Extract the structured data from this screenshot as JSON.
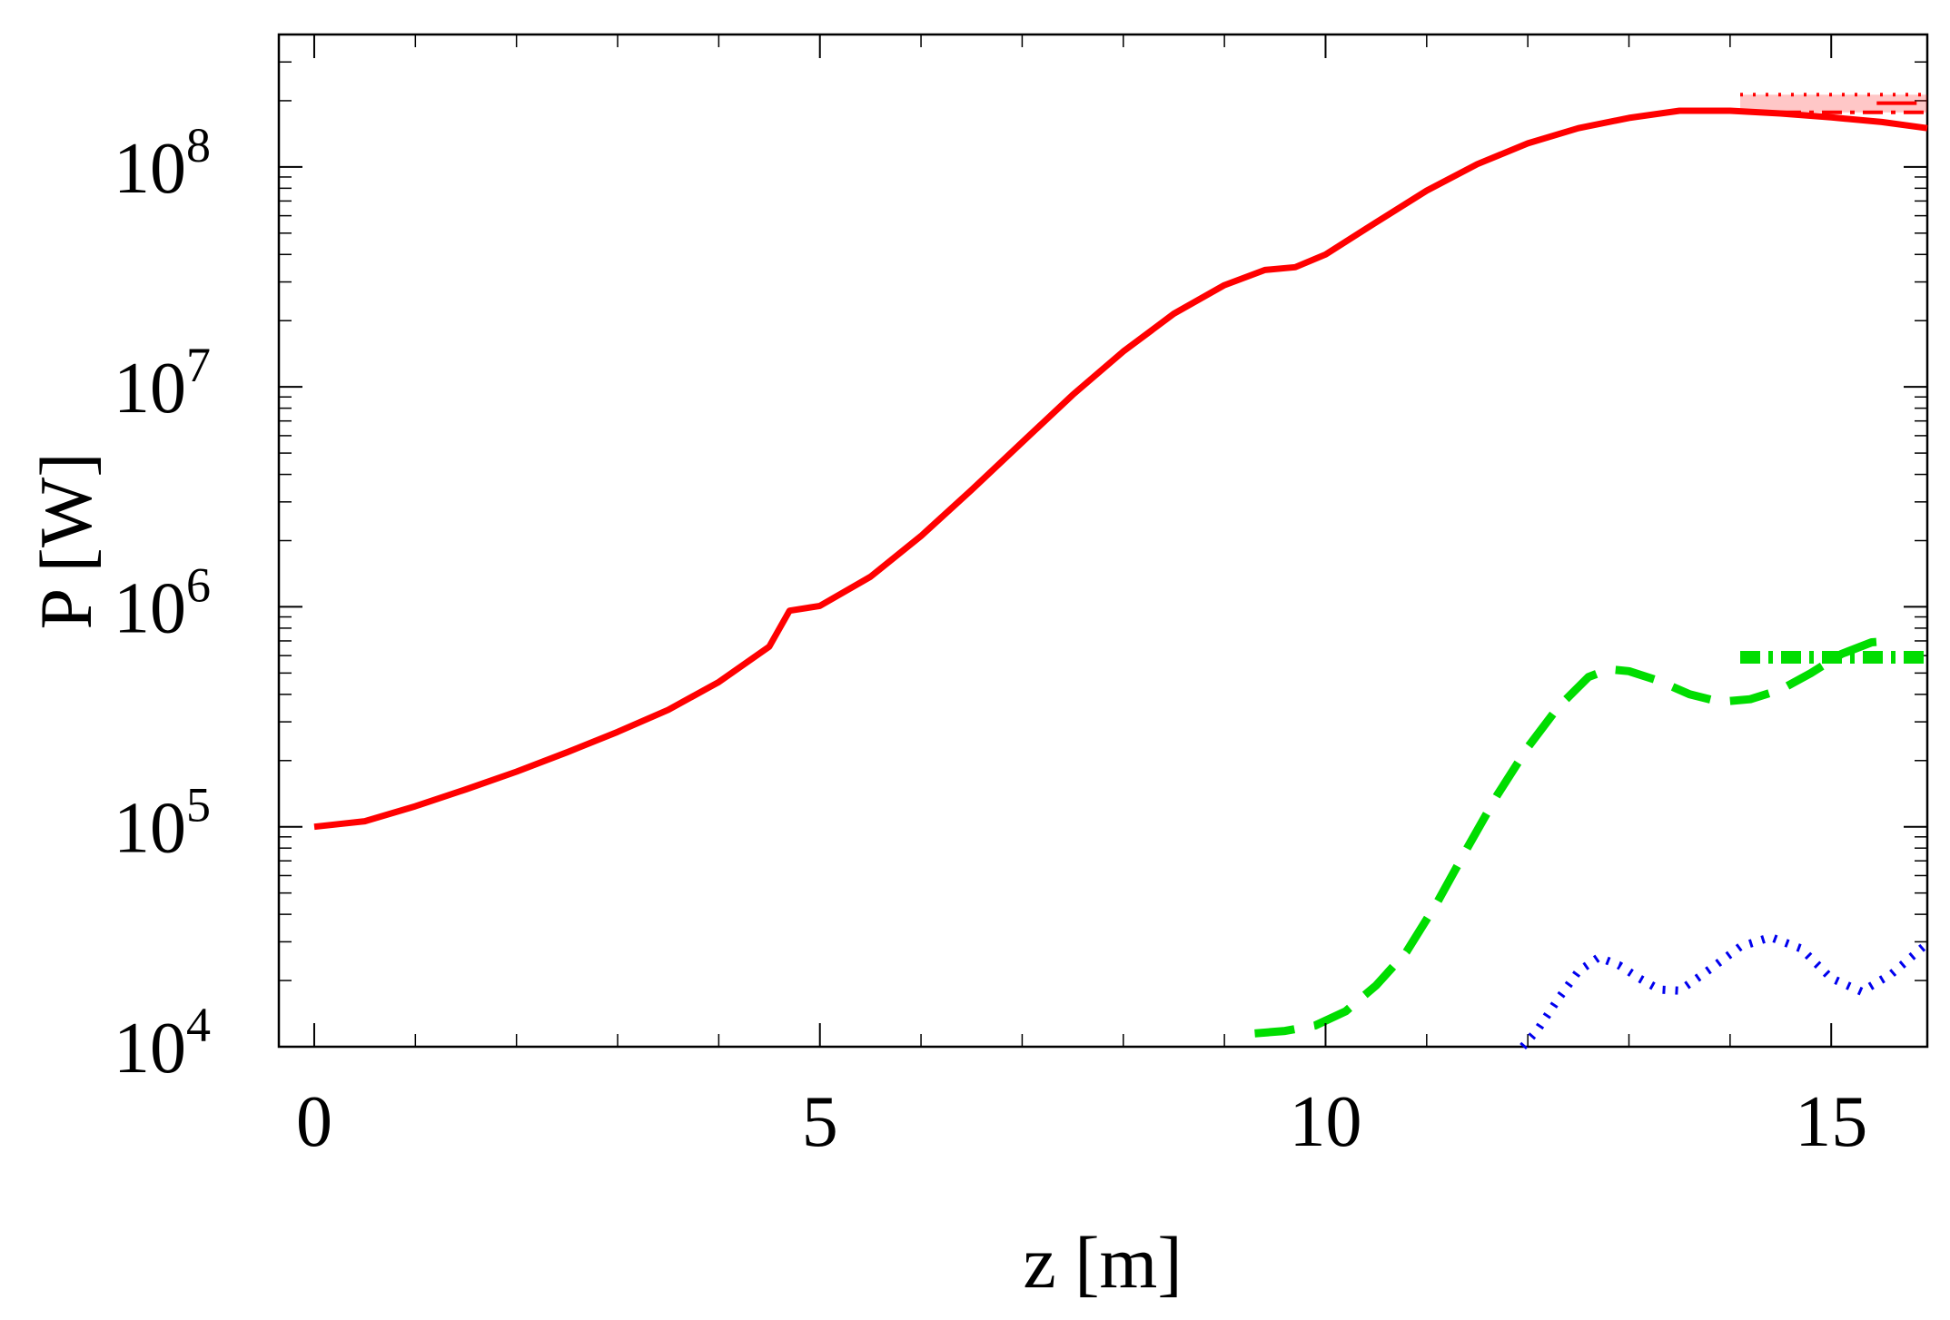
{
  "chart_data": {
    "type": "line",
    "title": "",
    "xlabel": "z [m]",
    "ylabel": "P [W]",
    "xlim": [
      -0.35,
      15.95
    ],
    "ylim": [
      10000,
      400000000
    ],
    "yscale": "log",
    "grid": false,
    "x_ticks": [
      {
        "value": 0,
        "label": "0"
      },
      {
        "value": 5,
        "label": "5"
      },
      {
        "value": 10,
        "label": "10"
      },
      {
        "value": 15,
        "label": "15"
      }
    ],
    "y_ticks": [
      {
        "value": 10000,
        "base": "10",
        "exp": "4"
      },
      {
        "value": 100000,
        "base": "10",
        "exp": "5"
      },
      {
        "value": 1000000,
        "base": "10",
        "exp": "6"
      },
      {
        "value": 10000000,
        "base": "10",
        "exp": "7"
      },
      {
        "value": 100000000,
        "base": "10",
        "exp": "8"
      }
    ],
    "series": [
      {
        "color": "#ff0000",
        "style": "solid",
        "x": [
          0,
          0.5,
          1,
          1.5,
          2,
          2.5,
          3,
          3.5,
          4,
          4.5,
          4.7,
          5,
          5.5,
          6,
          6.5,
          7,
          7.5,
          8,
          8.5,
          9,
          9.4,
          9.7,
          10,
          10.5,
          11,
          11.5,
          12,
          12.5,
          13,
          13.5,
          14,
          14.5,
          15,
          15.5,
          15.95
        ],
        "y": [
          100000,
          106000,
          124000,
          148000,
          178000,
          218000,
          270000,
          340000,
          455000,
          660000,
          960000,
          1010000,
          1370000,
          2100000,
          3400000,
          5600000,
          9200000,
          14500000,
          21500000,
          29000000,
          34000000,
          35000000,
          40000000,
          56000000,
          78000000,
          103000000,
          128000000,
          150000000,
          167000000,
          180000000,
          180000000,
          175000000,
          168000000,
          160000000,
          150000000
        ]
      },
      {
        "color": "#ff0000",
        "style": "dotted",
        "x": [
          14.1,
          15.95
        ],
        "y": [
          213000000,
          213000000
        ]
      },
      {
        "color": "#ff0000",
        "style": "dashdot",
        "x": [
          14.1,
          15.95
        ],
        "y": [
          177000000,
          177000000
        ]
      },
      {
        "color": "#ff0000",
        "style": "dashed",
        "x": [
          15.45,
          15.95
        ],
        "y": [
          195000000,
          195000000
        ]
      },
      {
        "color": "#00dd00",
        "style": "dashed",
        "x": [
          9.3,
          9.6,
          9.9,
          10.2,
          10.5,
          10.8,
          11.1,
          11.4,
          11.7,
          12.0,
          12.3,
          12.6,
          12.8,
          13.0,
          13.3,
          13.6,
          13.9,
          14.2,
          14.5,
          14.8,
          15.1,
          15.4,
          15.6
        ],
        "y": [
          11500,
          11800,
          12500,
          14500,
          19000,
          27000,
          45000,
          80000,
          140000,
          230000,
          350000,
          480000,
          520000,
          510000,
          460000,
          400000,
          370000,
          380000,
          420000,
          500000,
          610000,
          690000,
          700000
        ]
      },
      {
        "color": "#00dd00",
        "style": "dashdot",
        "x": [
          14.1,
          15.95
        ],
        "y": [
          590000,
          590000
        ]
      },
      {
        "color": "#0000ee",
        "style": "dotted",
        "x": [
          11.95,
          12.1,
          12.3,
          12.5,
          12.7,
          12.9,
          13.1,
          13.3,
          13.5,
          13.8,
          14.1,
          14.4,
          14.7,
          15.0,
          15.3,
          15.6,
          15.95
        ],
        "y": [
          10000,
          12000,
          16500,
          22000,
          25500,
          23500,
          20500,
          18200,
          18000,
          22500,
          28500,
          31500,
          28000,
          20500,
          17800,
          21500,
          29500
        ]
      }
    ]
  }
}
